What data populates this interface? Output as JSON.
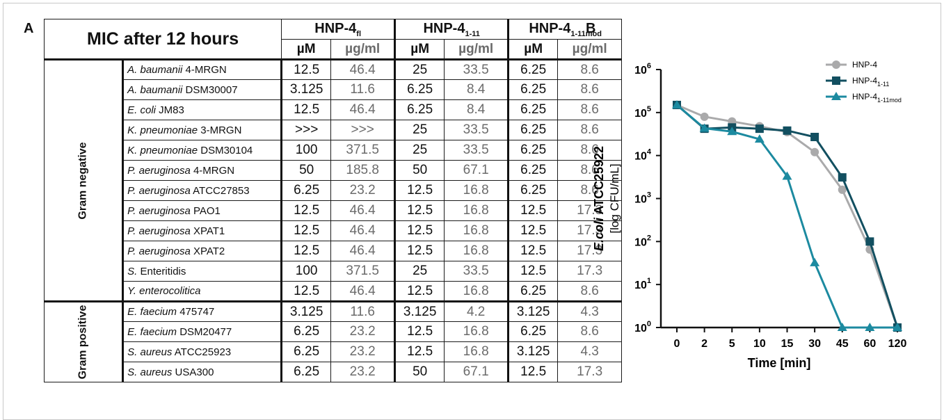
{
  "panel_a": {
    "label": "A",
    "table_title": "MIC after 12 hours",
    "peptides": [
      {
        "name": "HNP-4",
        "sub": "fl"
      },
      {
        "name": "HNP-4",
        "sub": "1-11"
      },
      {
        "name": "HNP-4",
        "sub": "1-11mod"
      }
    ],
    "units": [
      "µM",
      "µg/ml",
      "µM",
      "µg/ml",
      "µM",
      "µg/ml"
    ],
    "groups": [
      {
        "label": "Gram negative",
        "rows": [
          {
            "genus": "A. baumanii",
            "strain": " 4-MRGN",
            "values": [
              "12.5",
              "46.4",
              "25",
              "33.5",
              "6.25",
              "8.6"
            ]
          },
          {
            "genus": "A. baumanii",
            "strain": " DSM30007",
            "values": [
              "3.125",
              "11.6",
              "6.25",
              "8.4",
              "6.25",
              "8.6"
            ]
          },
          {
            "genus": "E. coli",
            "strain": " JM83",
            "values": [
              "12.5",
              "46.4",
              "6.25",
              "8.4",
              "6.25",
              "8.6"
            ]
          },
          {
            "genus": "K. pneumoniae",
            "strain": " 3-MRGN",
            "values": [
              ">>>",
              ">>>",
              "25",
              "33.5",
              "6.25",
              "8.6"
            ]
          },
          {
            "genus": "K. pneumoniae",
            "strain": " DSM30104",
            "values": [
              "100",
              "371.5",
              "25",
              "33.5",
              "6.25",
              "8.6"
            ]
          },
          {
            "genus": "P. aeruginosa",
            "strain": " 4-MRGN",
            "values": [
              "50",
              "185.8",
              "50",
              "67.1",
              "6.25",
              "8.6"
            ]
          },
          {
            "genus": "P. aeruginosa",
            "strain": " ATCC27853",
            "values": [
              "6.25",
              "23.2",
              "12.5",
              "16.8",
              "6.25",
              "8.6"
            ]
          },
          {
            "genus": "P. aeruginosa",
            "strain": " PAO1",
            "values": [
              "12.5",
              "46.4",
              "12.5",
              "16.8",
              "12.5",
              "17.3"
            ]
          },
          {
            "genus": "P. aeruginosa",
            "strain": " XPAT1",
            "values": [
              "12.5",
              "46.4",
              "12.5",
              "16.8",
              "12.5",
              "17.3"
            ]
          },
          {
            "genus": "P. aeruginosa",
            "strain": " XPAT2",
            "values": [
              "12.5",
              "46.4",
              "12.5",
              "16.8",
              "12.5",
              "17.3"
            ]
          },
          {
            "genus": "S.",
            "strain": " Enteritidis",
            "values": [
              "100",
              "371.5",
              "25",
              "33.5",
              "12.5",
              "17.3"
            ]
          },
          {
            "genus": "Y. enterocolitica",
            "strain": "",
            "values": [
              "12.5",
              "46.4",
              "12.5",
              "16.8",
              "6.25",
              "8.6"
            ]
          }
        ]
      },
      {
        "label": "Gram positive",
        "rows": [
          {
            "genus": "E. faecium",
            "strain": " 475747",
            "values": [
              "3.125",
              "11.6",
              "3.125",
              "4.2",
              "3.125",
              "4.3"
            ]
          },
          {
            "genus": "E. faecium",
            "strain": " DSM20477",
            "values": [
              "6.25",
              "23.2",
              "12.5",
              "16.8",
              "6.25",
              "8.6"
            ]
          },
          {
            "genus": "S. aureus",
            "strain": " ATCC25923",
            "values": [
              "6.25",
              "23.2",
              "12.5",
              "16.8",
              "3.125",
              "4.3"
            ]
          },
          {
            "genus": "S. aureus",
            "strain": " USA300",
            "values": [
              "6.25",
              "23.2",
              "50",
              "67.1",
              "12.5",
              "17.3"
            ]
          }
        ]
      }
    ]
  },
  "panel_b": {
    "label": "B",
    "chart_data": {
      "type": "line",
      "categories": [
        "0",
        "2",
        "5",
        "10",
        "15",
        "30",
        "45",
        "60",
        "120"
      ],
      "xlabel": "Time [min]",
      "ylabel_italic": "E.coli",
      "ylabel_rest": " ATCC25922",
      "ylabel_line2": "[log CFU/mL]",
      "yscale": "log",
      "yticks": [
        {
          "base": "10",
          "exp": "0"
        },
        {
          "base": "10",
          "exp": "1"
        },
        {
          "base": "10",
          "exp": "2"
        },
        {
          "base": "10",
          "exp": "3"
        },
        {
          "base": "10",
          "exp": "4"
        },
        {
          "base": "10",
          "exp": "5"
        },
        {
          "base": "10",
          "exp": "6"
        }
      ],
      "ylim": [
        1,
        1000000
      ],
      "legend_position": "top-right",
      "series": [
        {
          "name": "HNP-4",
          "sub": "",
          "color": "#aaaaab",
          "marker": "circle",
          "values": [
            150000,
            80000,
            62000,
            48000,
            35000,
            12000,
            1600,
            65,
            1
          ]
        },
        {
          "name": "HNP-4",
          "sub": "1-11",
          "color": "#124f60",
          "marker": "square",
          "values": [
            150000,
            42000,
            45000,
            42000,
            38000,
            27000,
            3100,
            100,
            1
          ]
        },
        {
          "name": "HNP-4",
          "sub": "1-11mod",
          "color": "#1c8aa0",
          "marker": "triangle",
          "values": [
            150000,
            43000,
            36000,
            24000,
            3300,
            32,
            1,
            1,
            1
          ]
        }
      ]
    }
  }
}
